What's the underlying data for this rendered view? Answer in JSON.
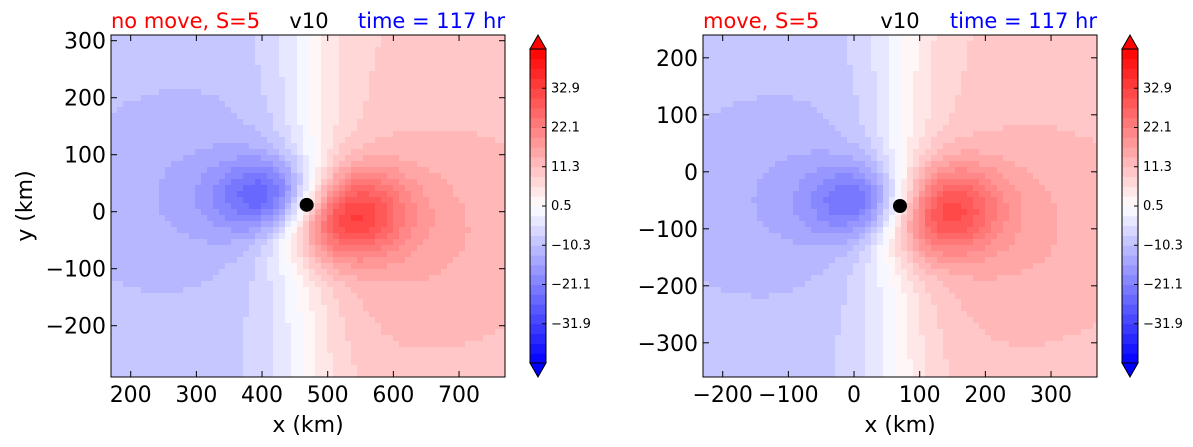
{
  "colors": {
    "title_left": "#ff0000",
    "title_right": "#0000ff",
    "negative": "#0000ff",
    "positive": "#ff0000",
    "marker": "#000000"
  },
  "chart_data": [
    {
      "type": "heatmap",
      "title_left": "no move, S=5",
      "title_center": "v10",
      "title_right": "time = 117 hr",
      "xlabel": "x (km)",
      "ylabel": "y (km)",
      "xlim": [
        170,
        770
      ],
      "ylim": [
        -290,
        310
      ],
      "xticks": [
        200,
        300,
        400,
        500,
        600,
        700
      ],
      "xtick_labels": [
        "200",
        "300",
        "400",
        "500",
        "600",
        "700"
      ],
      "yticks": [
        -200,
        -100,
        0,
        100,
        200,
        300
      ],
      "ytick_labels": [
        "−200",
        "−100",
        "0",
        "100",
        "200",
        "300"
      ],
      "center": [
        468,
        12
      ],
      "peak_negative": [
        435,
        22
      ],
      "peak_positive": [
        505,
        0
      ],
      "colorbar": {
        "min": -42.7,
        "max": 43.7,
        "extend": "both",
        "ticks": [
          -31.9,
          -21.1,
          -10.3,
          0.5,
          11.3,
          22.1,
          32.9
        ],
        "tick_labels": [
          "−31.9",
          "−21.1",
          "−10.3",
          "0.5",
          "11.3",
          "22.1",
          "32.9"
        ]
      }
    },
    {
      "type": "heatmap",
      "title_left": "move, S=5",
      "title_center": "v10",
      "title_right": "time = 117 hr",
      "xlabel": "x (km)",
      "ylabel": "",
      "xlim": [
        -230,
        370
      ],
      "ylim": [
        -360,
        240
      ],
      "xticks": [
        -200,
        -100,
        0,
        100,
        200,
        300
      ],
      "xtick_labels": [
        "−200",
        "−100",
        "0",
        "100",
        "200",
        "300"
      ],
      "yticks": [
        -300,
        -200,
        -100,
        0,
        100,
        200
      ],
      "ytick_labels": [
        "−300",
        "−200",
        "−100",
        "0",
        "100",
        "200"
      ],
      "center": [
        70,
        -60
      ],
      "peak_negative": [
        40,
        -55
      ],
      "peak_positive": [
        105,
        -65
      ],
      "colorbar": {
        "min": -42.7,
        "max": 43.7,
        "extend": "both",
        "ticks": [
          -31.9,
          -21.1,
          -10.3,
          0.5,
          11.3,
          22.1,
          32.9
        ],
        "tick_labels": [
          "−31.9",
          "−21.1",
          "−10.3",
          "0.5",
          "11.3",
          "22.1",
          "32.9"
        ]
      }
    }
  ]
}
